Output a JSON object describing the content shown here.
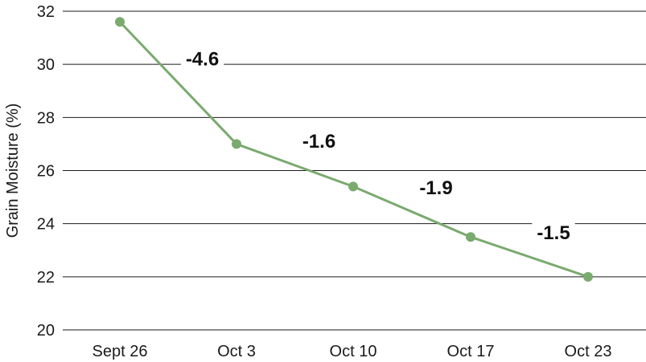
{
  "chart_data": {
    "type": "line",
    "title": "",
    "xlabel": "",
    "ylabel": "Grain Moisture (%)",
    "categories": [
      "Sept 26",
      "Oct 3",
      "Oct 10",
      "Oct 17",
      "Oct 23"
    ],
    "series": [
      {
        "values": [
          31.6,
          27.0,
          25.4,
          23.5,
          22.0
        ],
        "color": "#7aaa6e"
      }
    ],
    "ylim": [
      20,
      32
    ],
    "yticks": [
      20,
      22,
      24,
      26,
      28,
      30,
      32
    ],
    "grid": true,
    "annotations": [
      {
        "text": "-4.6",
        "between": [
          0,
          1
        ]
      },
      {
        "text": "-1.6",
        "between": [
          1,
          2
        ]
      },
      {
        "text": "-1.9",
        "between": [
          2,
          3
        ]
      },
      {
        "text": "-1.5",
        "between": [
          3,
          4
        ]
      }
    ]
  }
}
